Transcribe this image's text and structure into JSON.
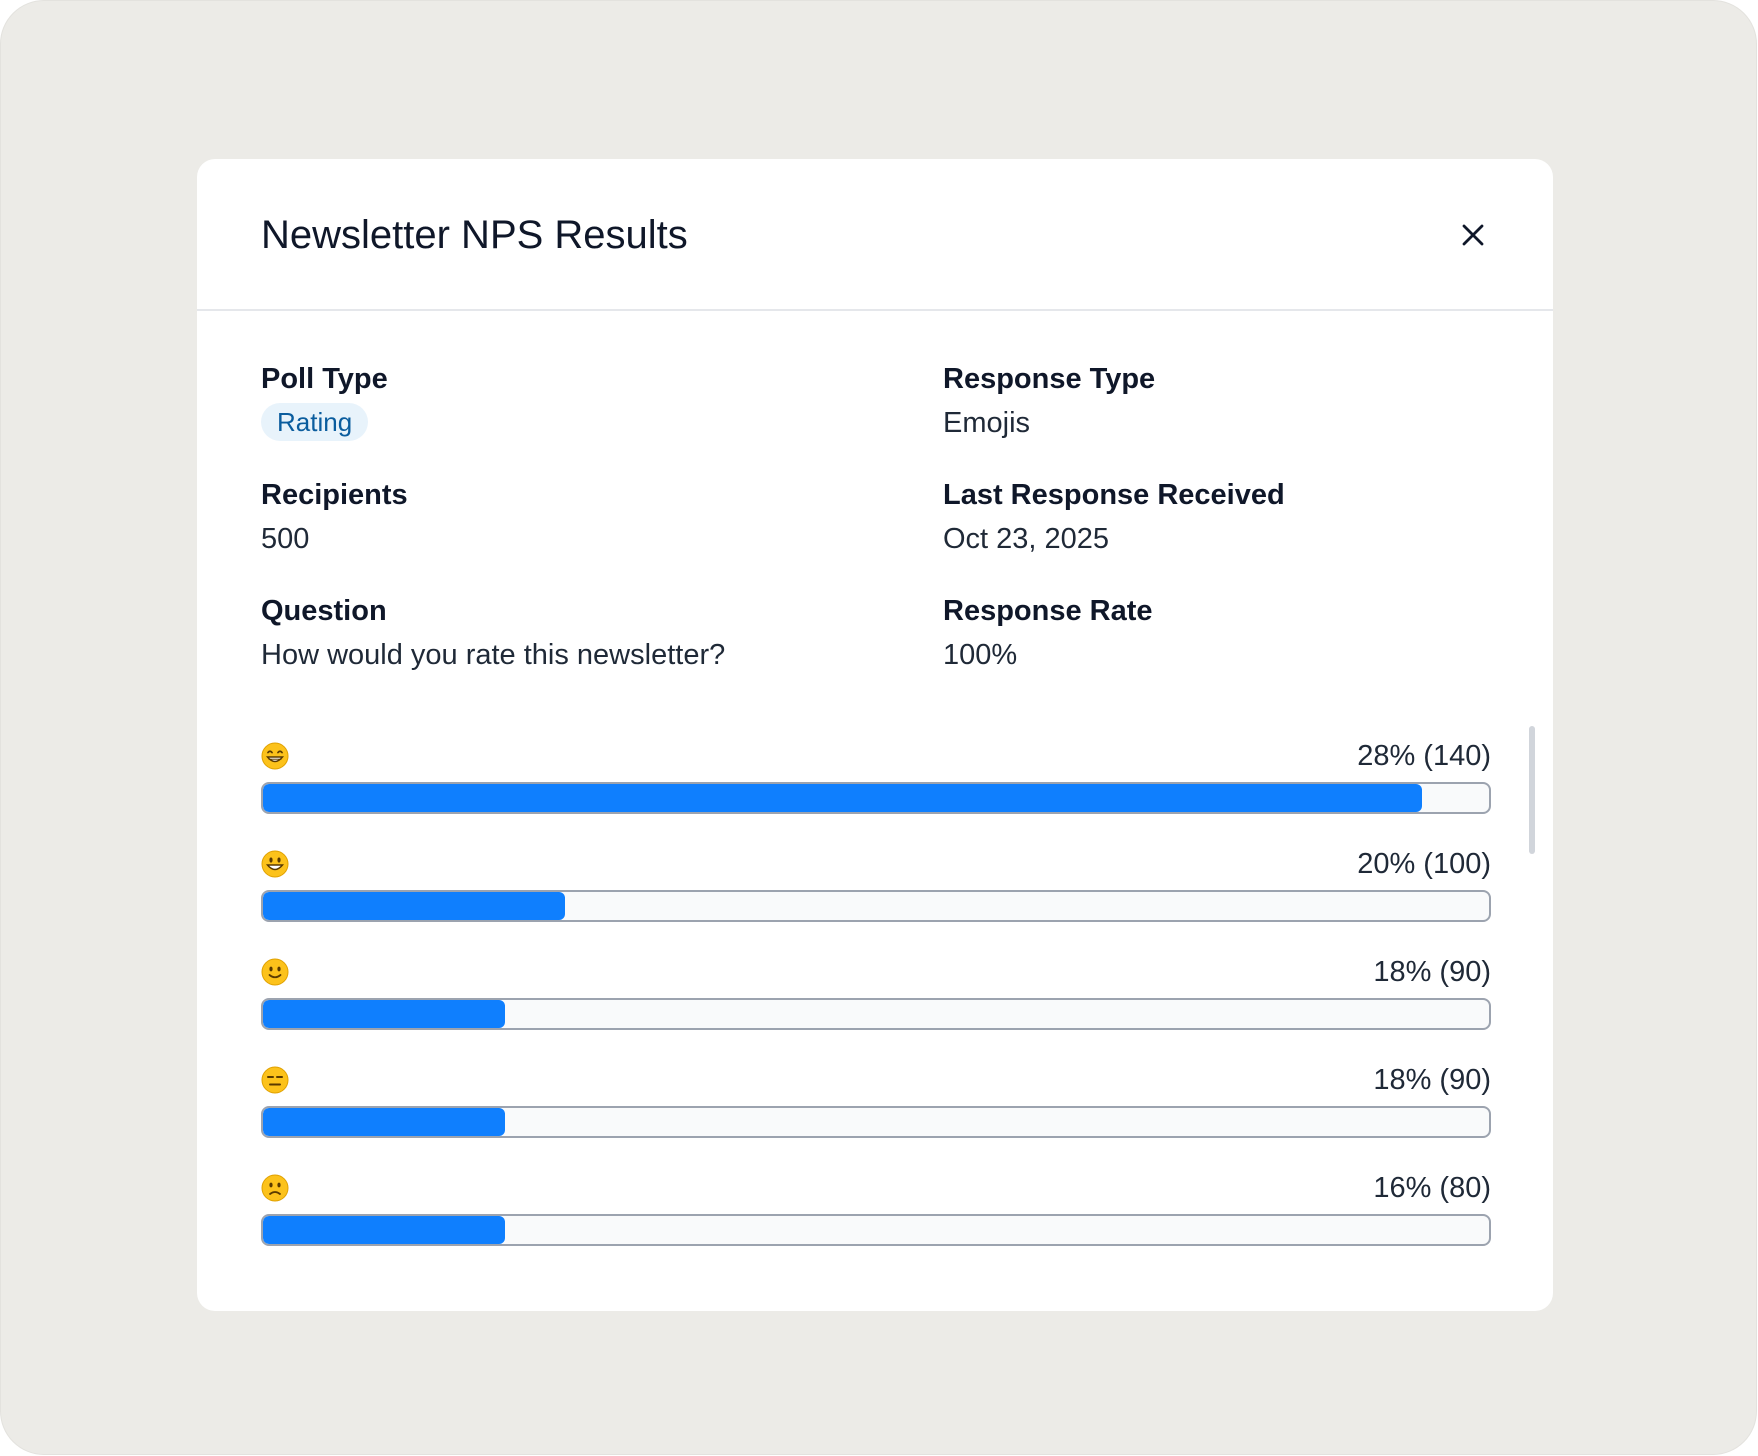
{
  "modal": {
    "title": "Newsletter NPS Results",
    "close_icon": "close-icon"
  },
  "details": {
    "poll_type_label": "Poll Type",
    "poll_type_value": "Rating",
    "response_type_label": "Response Type",
    "response_type_value": "Emojis",
    "recipients_label": "Recipients",
    "recipients_value": "500",
    "last_response_label": "Last Response Received",
    "last_response_value": "Oct 23, 2025",
    "question_label": "Question",
    "question_value": "How would you rate this newsletter?",
    "response_rate_label": "Response Rate",
    "response_rate_value": "100%"
  },
  "results": [
    {
      "emoji": "grinning-smiling-eyes-emoji-icon",
      "stat": "28% (140)",
      "fill": 0.945
    },
    {
      "emoji": "grinning-big-eyes-emoji-icon",
      "stat": "20% (100)",
      "fill": 0.246
    },
    {
      "emoji": "slightly-smiling-emoji-icon",
      "stat": "18% (90)",
      "fill": 0.197
    },
    {
      "emoji": "expressionless-emoji-icon",
      "stat": "18% (90)",
      "fill": 0.197
    },
    {
      "emoji": "slightly-frowning-emoji-icon",
      "stat": "16% (80)",
      "fill": 0.197
    }
  ],
  "colors": {
    "bar_fill": "#0f7ffe",
    "badge_bg": "#e8f3fb",
    "badge_text": "#0b5d9e"
  }
}
